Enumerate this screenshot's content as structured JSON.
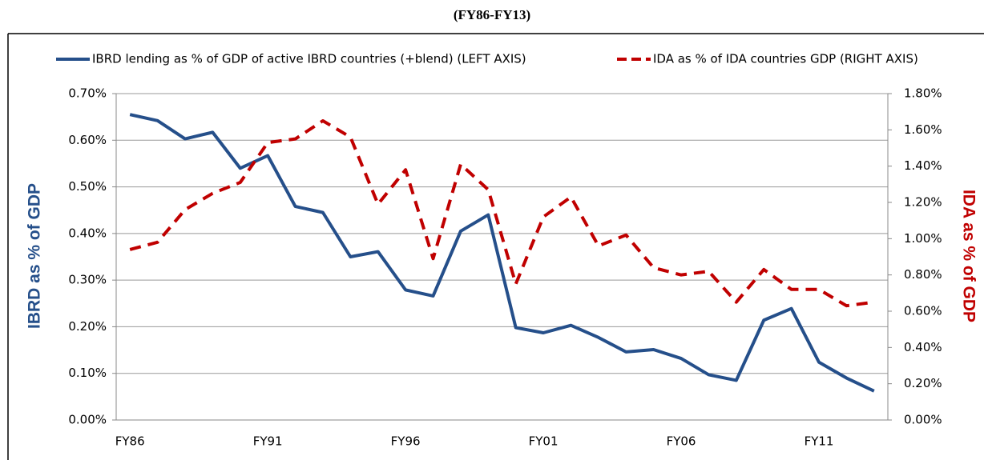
{
  "chart_data": {
    "type": "line",
    "title": "(FY86-FY13)",
    "categories": [
      "FY86",
      null,
      null,
      null,
      null,
      "FY91",
      null,
      null,
      null,
      null,
      "FY96",
      null,
      null,
      null,
      null,
      "FY01",
      null,
      null,
      null,
      null,
      "FY06",
      null,
      null,
      null,
      null,
      "FY11",
      null,
      null
    ],
    "series": [
      {
        "name": "IBRD lending as % of GDP of active IBRD  countries (+blend) (LEFT AXIS)",
        "color": "#254f8a",
        "axis": "y",
        "values": [
          0.655,
          0.642,
          0.603,
          0.617,
          0.54,
          0.567,
          0.458,
          0.445,
          0.35,
          0.361,
          0.279,
          0.266,
          0.405,
          0.44,
          0.198,
          0.187,
          0.203,
          0.177,
          0.146,
          0.151,
          0.132,
          0.097,
          0.085,
          0.214,
          0.239,
          0.124,
          0.09,
          0.062
        ]
      },
      {
        "name": "IDA as % of IDA countries GDP (RIGHT AXIS)",
        "color": "#c00000",
        "axis": "y2",
        "values": [
          0.94,
          0.98,
          1.16,
          1.25,
          1.31,
          1.53,
          1.55,
          1.65,
          1.56,
          1.19,
          1.38,
          0.89,
          1.41,
          1.27,
          0.75,
          1.12,
          1.23,
          0.96,
          1.02,
          0.84,
          0.8,
          0.82,
          0.65,
          0.83,
          0.72,
          0.72,
          0.63,
          0.65
        ]
      }
    ],
    "ylabel": "IBRD as % of GDP",
    "y2label": "IDA  as % of GDP",
    "ylim": [
      0,
      0.7
    ],
    "yticks": [
      {
        "value": 0,
        "label": "0.00%"
      },
      {
        "value": 0.1,
        "label": "0.10%"
      },
      {
        "value": 0.2,
        "label": "0.20%"
      },
      {
        "value": 0.3,
        "label": "0.30%"
      },
      {
        "value": 0.4,
        "label": "0.40%"
      },
      {
        "value": 0.5,
        "label": "0.50%"
      },
      {
        "value": 0.6,
        "label": "0.60%"
      },
      {
        "value": 0.7,
        "label": "0.70%"
      }
    ],
    "y2lim": [
      0,
      1.8
    ],
    "y2ticks": [
      {
        "value": 0,
        "label": "0.00%"
      },
      {
        "value": 0.2,
        "label": "0.20%"
      },
      {
        "value": 0.4,
        "label": "0.40%"
      },
      {
        "value": 0.6,
        "label": "0.60%"
      },
      {
        "value": 0.8,
        "label": "0.80%"
      },
      {
        "value": 1.0,
        "label": "1.00%"
      },
      {
        "value": 1.2,
        "label": "1.20%"
      },
      {
        "value": 1.4,
        "label": "1.40%"
      },
      {
        "value": 1.6,
        "label": "1.60%"
      },
      {
        "value": 1.8,
        "label": "1.80%"
      }
    ],
    "grid": true
  }
}
